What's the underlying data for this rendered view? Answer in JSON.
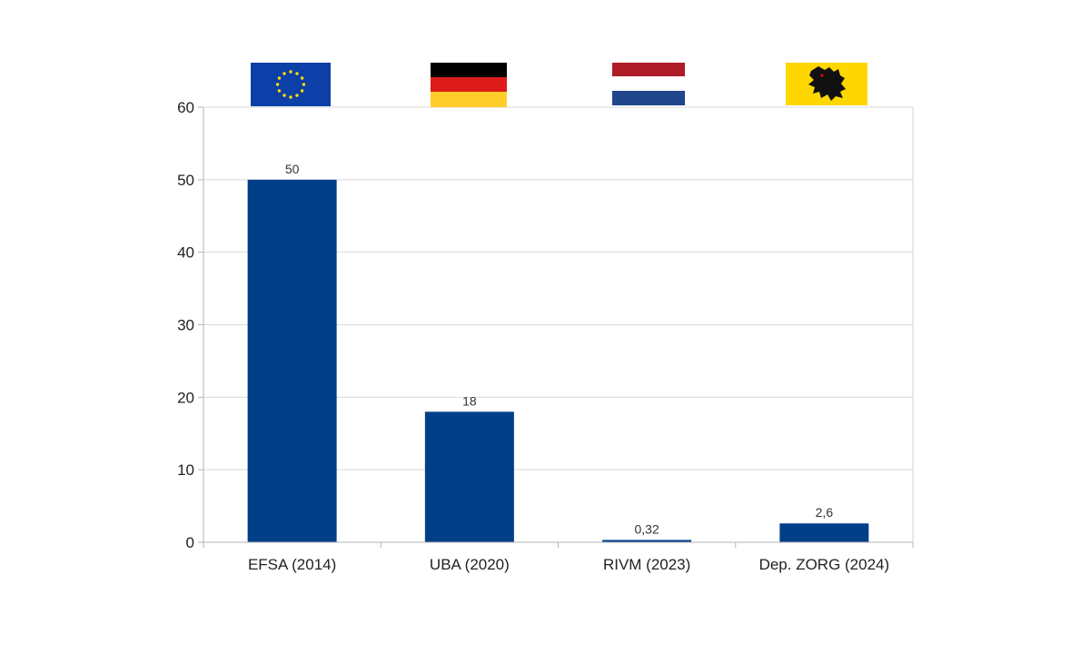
{
  "chart_data": {
    "type": "bar",
    "categories": [
      "EFSA (2014)",
      "UBA (2020)",
      "RIVM (2023)",
      "Dep. ZORG (2024)"
    ],
    "values": [
      50,
      18,
      0.32,
      2.6
    ],
    "data_labels": [
      "50",
      "18",
      "0,32",
      "2,6"
    ],
    "flags": [
      "eu-flag",
      "germany-flag",
      "netherlands-flag",
      "flanders-flag"
    ],
    "title": "",
    "xlabel": "",
    "ylabel": "",
    "ylim": [
      0,
      60
    ],
    "yticks": [
      0,
      10,
      20,
      30,
      40,
      50,
      60
    ],
    "grid": true,
    "bar_color": "#003f87"
  }
}
